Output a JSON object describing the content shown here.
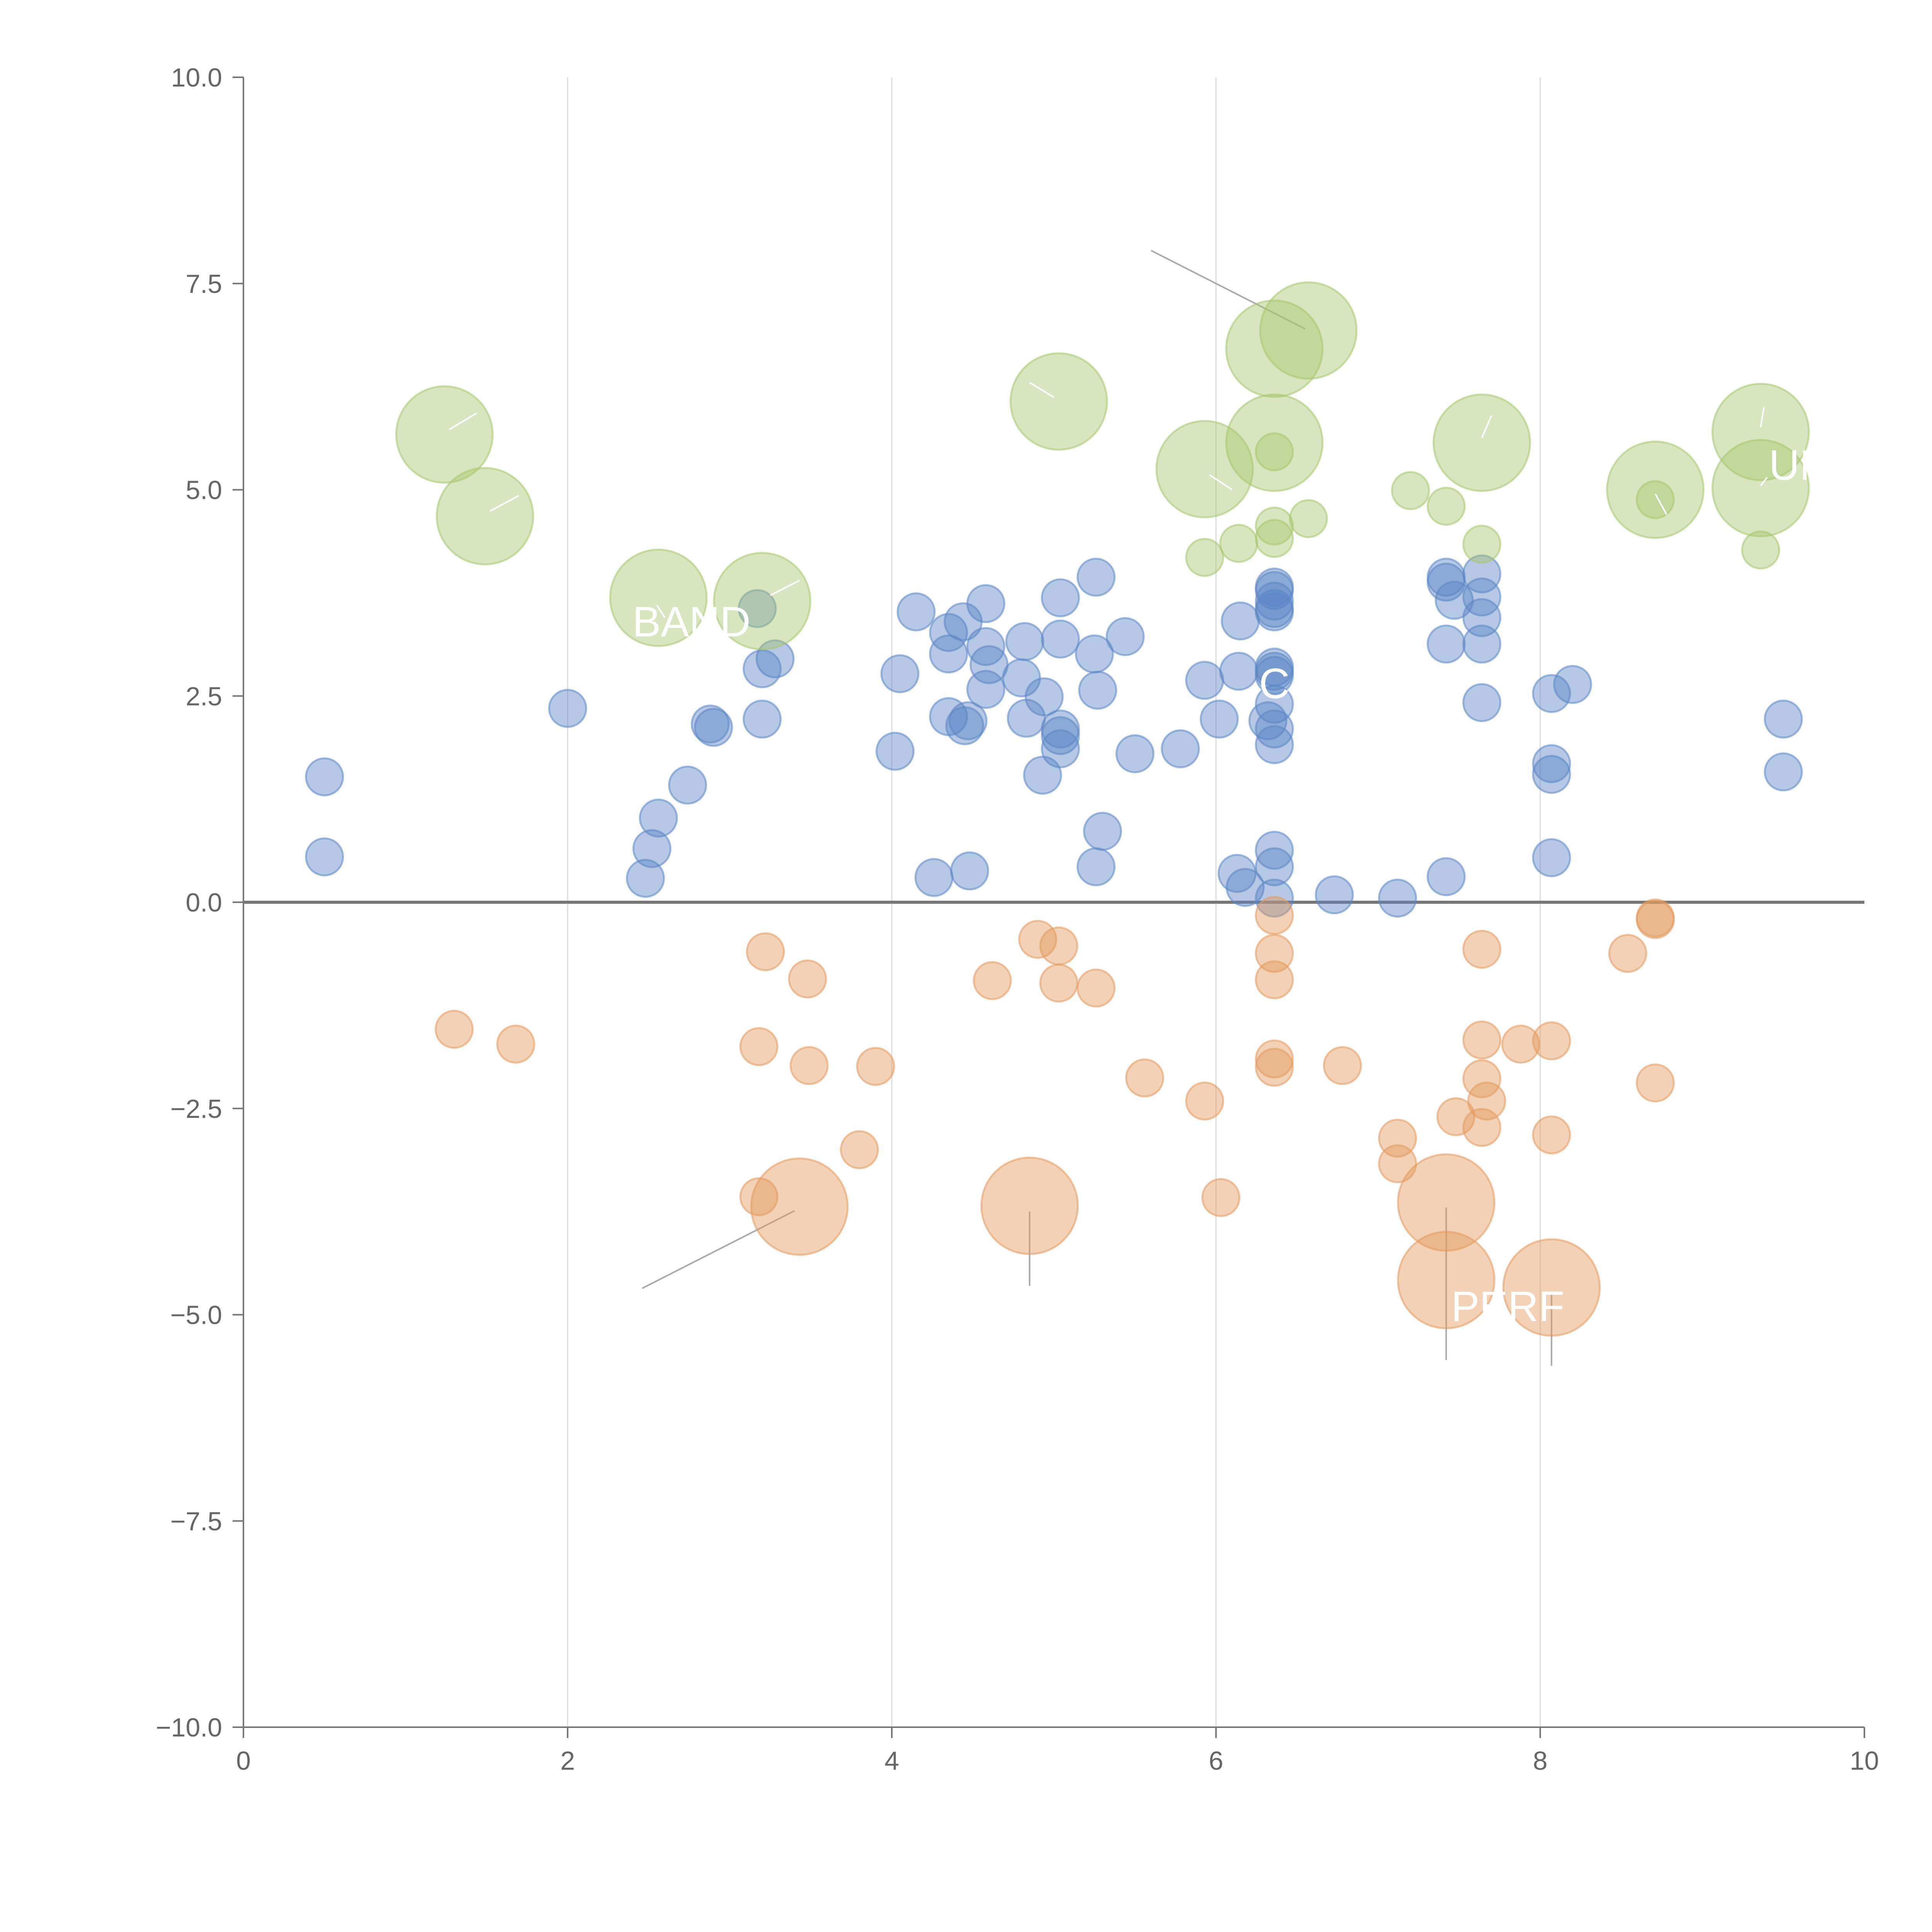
{
  "colors": {
    "positive": "#5b86c5",
    "negative": "#e39a5e",
    "highlight": "#a8c66e",
    "annotation_text": "#ffffff",
    "leader_dark": "#aaaaaa",
    "leader_light": "#ffffff"
  },
  "chart_data": {
    "type": "scatter",
    "title": "",
    "xlabel": "",
    "ylabel": "",
    "xlim": [
      0,
      10
    ],
    "ylim": [
      -10,
      10
    ],
    "x_ticks": [
      "0",
      "2",
      "4",
      "6",
      "8",
      "10"
    ],
    "y_ticks": [
      "10.0",
      "7.5",
      "5.0",
      "2.5",
      "0.0",
      "−2.5",
      "−5.0",
      "−7.5",
      "−10.0"
    ],
    "grid": "vertical",
    "reference_line_y": 0,
    "series": [
      {
        "name": "positive",
        "color": "#5b86c5",
        "points": [
          {
            "x": 0.5,
            "y": 1.52,
            "s": 1
          },
          {
            "x": 0.5,
            "y": 0.55,
            "s": 1
          },
          {
            "x": 2.0,
            "y": 2.35,
            "s": 1
          },
          {
            "x": 2.48,
            "y": 0.29,
            "s": 1
          },
          {
            "x": 2.52,
            "y": 0.65,
            "s": 1
          },
          {
            "x": 2.56,
            "y": 1.02,
            "s": 1
          },
          {
            "x": 2.74,
            "y": 1.42,
            "s": 1
          },
          {
            "x": 2.9,
            "y": 2.12,
            "s": 1
          },
          {
            "x": 2.88,
            "y": 2.16,
            "s": 1
          },
          {
            "x": 3.17,
            "y": 3.56,
            "s": 1
          },
          {
            "x": 3.28,
            "y": 2.95,
            "s": 1
          },
          {
            "x": 3.2,
            "y": 2.83,
            "s": 1
          },
          {
            "x": 3.2,
            "y": 2.22,
            "s": 1
          },
          {
            "x": 4.02,
            "y": 1.83,
            "s": 1
          },
          {
            "x": 4.05,
            "y": 2.77,
            "s": 1
          },
          {
            "x": 4.15,
            "y": 3.52,
            "s": 1
          },
          {
            "x": 4.26,
            "y": 0.3,
            "s": 1
          },
          {
            "x": 4.35,
            "y": 3.27,
            "s": 1
          },
          {
            "x": 4.35,
            "y": 3.01,
            "s": 1
          },
          {
            "x": 4.35,
            "y": 2.25,
            "s": 1
          },
          {
            "x": 4.44,
            "y": 3.4,
            "s": 1
          },
          {
            "x": 4.45,
            "y": 2.14,
            "s": 1
          },
          {
            "x": 4.47,
            "y": 2.2,
            "s": 1
          },
          {
            "x": 4.48,
            "y": 0.38,
            "s": 1
          },
          {
            "x": 4.58,
            "y": 3.62,
            "s": 1
          },
          {
            "x": 4.58,
            "y": 3.1,
            "s": 1
          },
          {
            "x": 4.6,
            "y": 2.88,
            "s": 1
          },
          {
            "x": 4.58,
            "y": 2.58,
            "s": 1
          },
          {
            "x": 4.82,
            "y": 3.16,
            "s": 1
          },
          {
            "x": 4.8,
            "y": 2.72,
            "s": 1
          },
          {
            "x": 4.83,
            "y": 2.23,
            "s": 1
          },
          {
            "x": 4.94,
            "y": 2.49,
            "s": 1
          },
          {
            "x": 4.93,
            "y": 1.54,
            "s": 1
          },
          {
            "x": 5.04,
            "y": 3.69,
            "s": 1
          },
          {
            "x": 5.04,
            "y": 3.19,
            "s": 1
          },
          {
            "x": 5.04,
            "y": 2.1,
            "s": 1
          },
          {
            "x": 5.04,
            "y": 2.02,
            "s": 1
          },
          {
            "x": 5.04,
            "y": 1.86,
            "s": 1
          },
          {
            "x": 5.26,
            "y": 3.94,
            "s": 1
          },
          {
            "x": 5.25,
            "y": 3.01,
            "s": 1
          },
          {
            "x": 5.27,
            "y": 2.57,
            "s": 1
          },
          {
            "x": 5.3,
            "y": 0.86,
            "s": 1
          },
          {
            "x": 5.26,
            "y": 0.43,
            "s": 1
          },
          {
            "x": 5.44,
            "y": 3.22,
            "s": 1
          },
          {
            "x": 5.5,
            "y": 1.8,
            "s": 1
          },
          {
            "x": 5.78,
            "y": 1.86,
            "s": 1
          },
          {
            "x": 5.93,
            "y": 2.69,
            "s": 1
          },
          {
            "x": 6.02,
            "y": 2.22,
            "s": 1
          },
          {
            "x": 6.15,
            "y": 3.41,
            "s": 1
          },
          {
            "x": 6.14,
            "y": 2.8,
            "s": 1
          },
          {
            "x": 6.13,
            "y": 0.35,
            "s": 1
          },
          {
            "x": 6.18,
            "y": 0.18,
            "s": 1
          },
          {
            "x": 6.36,
            "y": 3.82,
            "s": 1
          },
          {
            "x": 6.36,
            "y": 3.78,
            "s": 1
          },
          {
            "x": 6.36,
            "y": 3.65,
            "s": 1
          },
          {
            "x": 6.36,
            "y": 3.56,
            "s": 1
          },
          {
            "x": 6.36,
            "y": 3.52,
            "s": 1
          },
          {
            "x": 6.36,
            "y": 2.85,
            "s": 1
          },
          {
            "x": 6.36,
            "y": 2.8,
            "s": 1
          },
          {
            "x": 6.36,
            "y": 2.75,
            "s": 1
          },
          {
            "x": 6.36,
            "y": 2.4,
            "s": 1
          },
          {
            "x": 6.32,
            "y": 2.2,
            "s": 1
          },
          {
            "x": 6.36,
            "y": 2.1,
            "s": 1
          },
          {
            "x": 6.36,
            "y": 1.91,
            "s": 1
          },
          {
            "x": 6.36,
            "y": 0.63,
            "s": 1
          },
          {
            "x": 6.36,
            "y": 0.43,
            "s": 1
          },
          {
            "x": 6.36,
            "y": 0.05,
            "s": 1
          },
          {
            "x": 6.73,
            "y": 0.09,
            "s": 1
          },
          {
            "x": 7.12,
            "y": 0.05,
            "s": 1
          },
          {
            "x": 7.42,
            "y": 3.94,
            "s": 1
          },
          {
            "x": 7.42,
            "y": 3.88,
            "s": 1
          },
          {
            "x": 7.47,
            "y": 3.66,
            "s": 1
          },
          {
            "x": 7.42,
            "y": 3.13,
            "s": 1
          },
          {
            "x": 7.42,
            "y": 0.31,
            "s": 1
          },
          {
            "x": 7.64,
            "y": 3.98,
            "s": 1
          },
          {
            "x": 7.64,
            "y": 3.7,
            "s": 1
          },
          {
            "x": 7.64,
            "y": 3.45,
            "s": 1
          },
          {
            "x": 7.64,
            "y": 3.13,
            "s": 1
          },
          {
            "x": 7.64,
            "y": 2.42,
            "s": 1
          },
          {
            "x": 8.07,
            "y": 2.53,
            "s": 1
          },
          {
            "x": 8.07,
            "y": 1.68,
            "s": 1
          },
          {
            "x": 8.07,
            "y": 1.55,
            "s": 1
          },
          {
            "x": 8.07,
            "y": 0.54,
            "s": 1
          },
          {
            "x": 8.2,
            "y": 2.64,
            "s": 1
          },
          {
            "x": 9.5,
            "y": 2.22,
            "s": 1
          },
          {
            "x": 9.5,
            "y": 1.58,
            "s": 1
          }
        ]
      },
      {
        "name": "negative",
        "color": "#e39a5e",
        "points": [
          {
            "x": 1.3,
            "y": -1.54,
            "s": 1
          },
          {
            "x": 1.68,
            "y": -1.72,
            "s": 1
          },
          {
            "x": 3.18,
            "y": -1.75,
            "s": 1
          },
          {
            "x": 3.22,
            "y": -0.6,
            "s": 1
          },
          {
            "x": 3.48,
            "y": -0.93,
            "s": 1
          },
          {
            "x": 3.49,
            "y": -1.98,
            "s": 1
          },
          {
            "x": 3.18,
            "y": -3.57,
            "s": 1
          },
          {
            "x": 3.43,
            "y": -3.69,
            "s": 2.6
          },
          {
            "x": 3.8,
            "y": -3.0,
            "s": 1
          },
          {
            "x": 3.9,
            "y": -1.99,
            "s": 1
          },
          {
            "x": 4.62,
            "y": -0.95,
            "s": 1
          },
          {
            "x": 4.9,
            "y": -0.45,
            "s": 1
          },
          {
            "x": 5.03,
            "y": -0.53,
            "s": 1
          },
          {
            "x": 5.03,
            "y": -0.98,
            "s": 1
          },
          {
            "x": 5.26,
            "y": -1.04,
            "s": 1
          },
          {
            "x": 4.85,
            "y": -3.68,
            "s": 2.6
          },
          {
            "x": 5.56,
            "y": -2.13,
            "s": 1
          },
          {
            "x": 5.93,
            "y": -2.41,
            "s": 1
          },
          {
            "x": 6.03,
            "y": -3.58,
            "s": 1
          },
          {
            "x": 6.36,
            "y": -0.16,
            "s": 1
          },
          {
            "x": 6.36,
            "y": -0.62,
            "s": 1
          },
          {
            "x": 6.36,
            "y": -0.94,
            "s": 1
          },
          {
            "x": 6.36,
            "y": -1.9,
            "s": 1
          },
          {
            "x": 6.36,
            "y": -2.0,
            "s": 1
          },
          {
            "x": 6.78,
            "y": -1.98,
            "s": 1
          },
          {
            "x": 7.12,
            "y": -2.86,
            "s": 1
          },
          {
            "x": 7.12,
            "y": -3.17,
            "s": 1
          },
          {
            "x": 7.48,
            "y": -2.6,
            "s": 1
          },
          {
            "x": 7.42,
            "y": -3.64,
            "s": 2.6
          },
          {
            "x": 7.42,
            "y": -4.58,
            "s": 2.6
          },
          {
            "x": 7.64,
            "y": -0.57,
            "s": 1
          },
          {
            "x": 7.64,
            "y": -1.67,
            "s": 1
          },
          {
            "x": 7.64,
            "y": -2.14,
            "s": 1
          },
          {
            "x": 7.67,
            "y": -2.41,
            "s": 1
          },
          {
            "x": 7.64,
            "y": -2.73,
            "s": 1
          },
          {
            "x": 7.88,
            "y": -1.72,
            "s": 1
          },
          {
            "x": 8.07,
            "y": -1.68,
            "s": 1
          },
          {
            "x": 8.07,
            "y": -2.82,
            "s": 1
          },
          {
            "x": 8.07,
            "y": -4.67,
            "s": 2.6
          },
          {
            "x": 8.54,
            "y": -0.62,
            "s": 1
          },
          {
            "x": 8.71,
            "y": -0.19,
            "s": 1
          },
          {
            "x": 8.71,
            "y": -0.21,
            "s": 1
          },
          {
            "x": 8.71,
            "y": -2.19,
            "s": 1
          }
        ]
      },
      {
        "name": "highlight",
        "color": "#a8c66e",
        "points": [
          {
            "x": 1.24,
            "y": 5.67,
            "s": 2.6
          },
          {
            "x": 1.49,
            "y": 4.68,
            "s": 2.6
          },
          {
            "x": 2.56,
            "y": 3.69,
            "s": 2.6
          },
          {
            "x": 3.2,
            "y": 3.65,
            "s": 2.6
          },
          {
            "x": 5.03,
            "y": 6.07,
            "s": 2.6
          },
          {
            "x": 5.93,
            "y": 5.25,
            "s": 2.6
          },
          {
            "x": 5.93,
            "y": 4.18,
            "s": 1
          },
          {
            "x": 6.14,
            "y": 4.35,
            "s": 1
          },
          {
            "x": 6.36,
            "y": 6.71,
            "s": 2.6
          },
          {
            "x": 6.57,
            "y": 6.93,
            "s": 2.6
          },
          {
            "x": 6.36,
            "y": 5.57,
            "s": 2.6
          },
          {
            "x": 6.36,
            "y": 5.46,
            "s": 1
          },
          {
            "x": 6.36,
            "y": 4.56,
            "s": 1
          },
          {
            "x": 6.36,
            "y": 4.41,
            "s": 1
          },
          {
            "x": 6.57,
            "y": 4.65,
            "s": 1
          },
          {
            "x": 7.2,
            "y": 4.99,
            "s": 1
          },
          {
            "x": 7.42,
            "y": 4.8,
            "s": 1
          },
          {
            "x": 7.64,
            "y": 5.57,
            "s": 2.6
          },
          {
            "x": 7.64,
            "y": 4.34,
            "s": 1
          },
          {
            "x": 8.71,
            "y": 5.0,
            "s": 2.6
          },
          {
            "x": 8.71,
            "y": 4.88,
            "s": 1
          },
          {
            "x": 9.36,
            "y": 5.7,
            "s": 2.6
          },
          {
            "x": 9.36,
            "y": 5.02,
            "s": 2.6
          },
          {
            "x": 9.36,
            "y": 4.27,
            "s": 1
          }
        ]
      }
    ],
    "annotations": [
      {
        "text": "BAND",
        "x": 2.4,
        "y": 3.4,
        "anchor": "start"
      },
      {
        "text": "C",
        "x": 6.36,
        "y": 2.65,
        "anchor": "middle"
      },
      {
        "text": "UN",
        "x": 9.6,
        "y": 5.3,
        "anchor": "middle"
      },
      {
        "text": "PERF",
        "x": 7.8,
        "y": -4.9,
        "anchor": "middle"
      }
    ],
    "leaders": [
      {
        "x1": 5.6,
        "y1": 7.9,
        "x2": 6.55,
        "y2": 6.95,
        "style": "dark"
      },
      {
        "x1": 2.46,
        "y1": -4.68,
        "x2": 3.4,
        "y2": -3.74,
        "style": "dark"
      },
      {
        "x1": 4.85,
        "y1": -3.75,
        "x2": 4.85,
        "y2": -4.65,
        "style": "dark"
      },
      {
        "x1": 7.42,
        "y1": -3.7,
        "x2": 7.42,
        "y2": -5.55,
        "style": "dark"
      },
      {
        "x1": 8.07,
        "y1": -4.75,
        "x2": 8.07,
        "y2": -5.62,
        "style": "dark"
      },
      {
        "x1": 1.27,
        "y1": 5.73,
        "x2": 1.44,
        "y2": 5.93,
        "style": "light"
      },
      {
        "x1": 1.52,
        "y1": 4.74,
        "x2": 1.7,
        "y2": 4.93,
        "style": "light"
      },
      {
        "x1": 3.25,
        "y1": 3.72,
        "x2": 3.43,
        "y2": 3.9,
        "style": "light"
      },
      {
        "x1": 2.55,
        "y1": 3.6,
        "x2": 2.6,
        "y2": 3.45,
        "style": "light"
      },
      {
        "x1": 5.0,
        "y1": 6.12,
        "x2": 4.85,
        "y2": 6.3,
        "style": "light"
      },
      {
        "x1": 5.96,
        "y1": 5.18,
        "x2": 6.1,
        "y2": 5.0,
        "style": "light"
      },
      {
        "x1": 7.64,
        "y1": 5.63,
        "x2": 7.7,
        "y2": 5.9,
        "style": "light"
      },
      {
        "x1": 8.71,
        "y1": 4.95,
        "x2": 8.78,
        "y2": 4.7,
        "style": "light"
      },
      {
        "x1": 9.36,
        "y1": 5.76,
        "x2": 9.38,
        "y2": 6.0,
        "style": "light"
      },
      {
        "x1": 9.36,
        "y1": 5.05,
        "x2": 9.4,
        "y2": 5.15,
        "style": "light"
      }
    ]
  }
}
